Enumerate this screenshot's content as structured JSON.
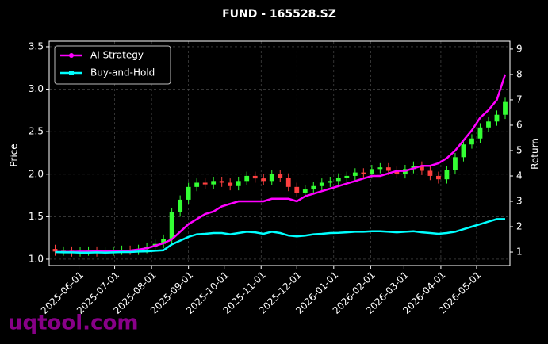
{
  "chart_data": {
    "type": "candlestick",
    "title": "FUND - 165528.SZ",
    "ylabel": "Price",
    "y2label": "Return",
    "watermark": "uqtool.com",
    "legend": "upper left",
    "grid": true,
    "up_color": "#33ff33",
    "down_color": "#ff4040",
    "x": [
      "2025-05-12",
      "2025-05-19",
      "2025-05-26",
      "2025-06-02",
      "2025-06-09",
      "2025-06-16",
      "2025-06-23",
      "2025-06-30",
      "2025-07-07",
      "2025-07-14",
      "2025-07-21",
      "2025-07-28",
      "2025-08-04",
      "2025-08-11",
      "2025-08-18",
      "2025-08-25",
      "2025-09-01",
      "2025-09-08",
      "2025-09-15",
      "2025-09-22",
      "2025-09-29",
      "2025-10-06",
      "2025-10-13",
      "2025-10-20",
      "2025-10-27",
      "2025-11-03",
      "2025-11-10",
      "2025-11-17",
      "2025-11-24",
      "2025-12-01",
      "2025-12-08",
      "2025-12-15",
      "2025-12-22",
      "2025-12-29",
      "2026-01-05",
      "2026-01-12",
      "2026-01-19",
      "2026-01-26",
      "2026-02-02",
      "2026-02-09",
      "2026-02-16",
      "2026-02-23",
      "2026-03-02",
      "2026-03-09",
      "2026-03-16",
      "2026-03-23",
      "2026-03-30",
      "2026-04-06",
      "2026-04-13",
      "2026-04-20",
      "2026-04-27",
      "2026-05-04",
      "2026-05-11",
      "2026-05-18",
      "2026-05-25"
    ],
    "open": [
      1.12,
      1.09,
      1.1,
      1.08,
      1.09,
      1.1,
      1.08,
      1.09,
      1.1,
      1.11,
      1.1,
      1.12,
      1.14,
      1.18,
      1.24,
      1.55,
      1.7,
      1.85,
      1.9,
      1.88,
      1.92,
      1.9,
      1.86,
      1.92,
      1.98,
      1.95,
      1.92,
      2.0,
      1.96,
      1.85,
      1.78,
      1.82,
      1.86,
      1.9,
      1.92,
      1.96,
      1.98,
      2.02,
      2.0,
      2.06,
      2.08,
      2.04,
      2.0,
      2.06,
      2.1,
      2.04,
      1.98,
      1.94,
      2.05,
      2.2,
      2.35,
      2.42,
      2.55,
      2.62,
      2.7
    ],
    "high": [
      1.17,
      1.15,
      1.15,
      1.14,
      1.15,
      1.15,
      1.14,
      1.15,
      1.16,
      1.16,
      1.17,
      1.19,
      1.23,
      1.29,
      1.6,
      1.75,
      1.9,
      1.95,
      1.95,
      1.97,
      1.97,
      1.95,
      1.97,
      2.03,
      2.03,
      2.0,
      2.05,
      2.05,
      2.01,
      1.9,
      1.87,
      1.91,
      1.95,
      1.97,
      2.01,
      2.03,
      2.07,
      2.07,
      2.11,
      2.13,
      2.13,
      2.09,
      2.11,
      2.15,
      2.15,
      2.09,
      2.03,
      2.1,
      2.25,
      2.4,
      2.47,
      2.6,
      2.67,
      2.75,
      2.9
    ],
    "low": [
      1.04,
      1.04,
      1.03,
      1.03,
      1.04,
      1.03,
      1.03,
      1.04,
      1.05,
      1.05,
      1.05,
      1.07,
      1.09,
      1.13,
      1.19,
      1.5,
      1.65,
      1.8,
      1.83,
      1.83,
      1.85,
      1.81,
      1.81,
      1.87,
      1.9,
      1.87,
      1.87,
      1.91,
      1.8,
      1.73,
      1.73,
      1.77,
      1.81,
      1.85,
      1.87,
      1.91,
      1.93,
      1.95,
      1.95,
      2.01,
      1.99,
      1.95,
      1.95,
      2.01,
      1.99,
      1.93,
      1.89,
      1.89,
      2.0,
      2.15,
      2.3,
      2.37,
      2.5,
      2.57,
      2.65
    ],
    "close": [
      1.09,
      1.1,
      1.08,
      1.09,
      1.1,
      1.08,
      1.09,
      1.1,
      1.11,
      1.1,
      1.12,
      1.14,
      1.18,
      1.24,
      1.55,
      1.7,
      1.85,
      1.9,
      1.88,
      1.92,
      1.9,
      1.86,
      1.92,
      1.98,
      1.95,
      1.92,
      2.0,
      1.96,
      1.85,
      1.78,
      1.82,
      1.86,
      1.9,
      1.92,
      1.96,
      1.98,
      2.02,
      2.0,
      2.06,
      2.08,
      2.04,
      2.0,
      2.06,
      2.1,
      2.04,
      1.98,
      1.94,
      2.05,
      2.2,
      2.35,
      2.42,
      2.55,
      2.62,
      2.7,
      2.85
    ],
    "series": [
      {
        "name": "AI Strategy",
        "color": "#ff00ff",
        "axis": "y2",
        "marker": "circle",
        "values": [
          1.0,
          1.01,
          1.01,
          1.02,
          1.02,
          1.03,
          1.03,
          1.04,
          1.05,
          1.06,
          1.1,
          1.15,
          1.25,
          1.35,
          1.5,
          1.8,
          2.1,
          2.3,
          2.5,
          2.6,
          2.8,
          2.9,
          3.0,
          3.0,
          3.0,
          3.0,
          3.1,
          3.1,
          3.1,
          3.0,
          3.2,
          3.3,
          3.4,
          3.5,
          3.6,
          3.7,
          3.8,
          3.9,
          4.0,
          4.0,
          4.1,
          4.2,
          4.2,
          4.3,
          4.4,
          4.4,
          4.5,
          4.7,
          5.0,
          5.4,
          5.8,
          6.3,
          6.6,
          7.0,
          8.0
        ]
      },
      {
        "name": "Buy-and-Hold",
        "color": "#00ffff",
        "axis": "y2",
        "marker": "square",
        "values": [
          1.0,
          0.99,
          0.99,
          0.98,
          0.98,
          0.99,
          0.98,
          0.99,
          1.0,
          1.0,
          1.02,
          1.03,
          1.05,
          1.07,
          1.3,
          1.45,
          1.6,
          1.7,
          1.72,
          1.75,
          1.75,
          1.7,
          1.75,
          1.8,
          1.78,
          1.72,
          1.8,
          1.75,
          1.65,
          1.62,
          1.65,
          1.7,
          1.72,
          1.75,
          1.76,
          1.78,
          1.8,
          1.8,
          1.82,
          1.82,
          1.8,
          1.78,
          1.8,
          1.82,
          1.78,
          1.75,
          1.72,
          1.75,
          1.8,
          1.9,
          2.0,
          2.1,
          2.2,
          2.3,
          2.3
        ]
      }
    ],
    "xlim": [
      "2025-05-07",
      "2026-05-29"
    ],
    "xticks": [
      "2025-06-01",
      "2025-07-01",
      "2025-08-01",
      "2025-09-01",
      "2025-10-01",
      "2025-11-01",
      "2025-12-01",
      "2026-01-01",
      "2026-02-01",
      "2026-03-01",
      "2026-04-01",
      "2026-05-01"
    ],
    "ylim": [
      0.925,
      3.565
    ],
    "yticks": [
      {
        "value": 1,
        "label": "1.0"
      },
      1.5,
      {
        "value": 2,
        "label": "2.0"
      },
      2.5,
      {
        "value": 3,
        "label": "3.0"
      },
      3.5
    ],
    "y2lim": [
      0.47,
      9.31
    ],
    "y2ticks": [
      1,
      2,
      3,
      4,
      5,
      6,
      7,
      8,
      9
    ]
  }
}
